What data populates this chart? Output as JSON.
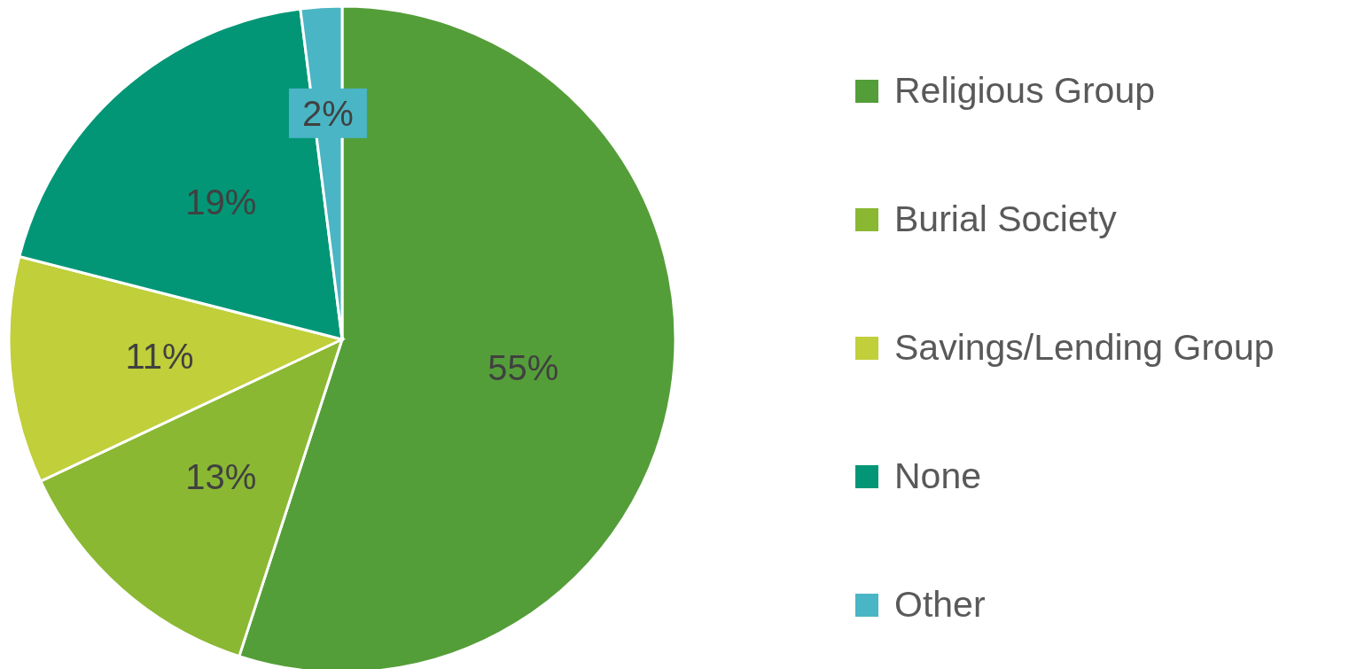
{
  "chart_data": {
    "type": "pie",
    "categories": [
      "Religious Group",
      "Burial Society",
      "Savings/Lending Group",
      "None",
      "Other"
    ],
    "values": [
      55,
      13,
      11,
      19,
      2
    ],
    "value_labels": [
      "55%",
      "13%",
      "11%",
      "19%",
      "2%"
    ],
    "colors": [
      "#549e39",
      "#8ab833",
      "#c0cf3a",
      "#029676",
      "#4ab5c4"
    ],
    "legend": "right"
  }
}
